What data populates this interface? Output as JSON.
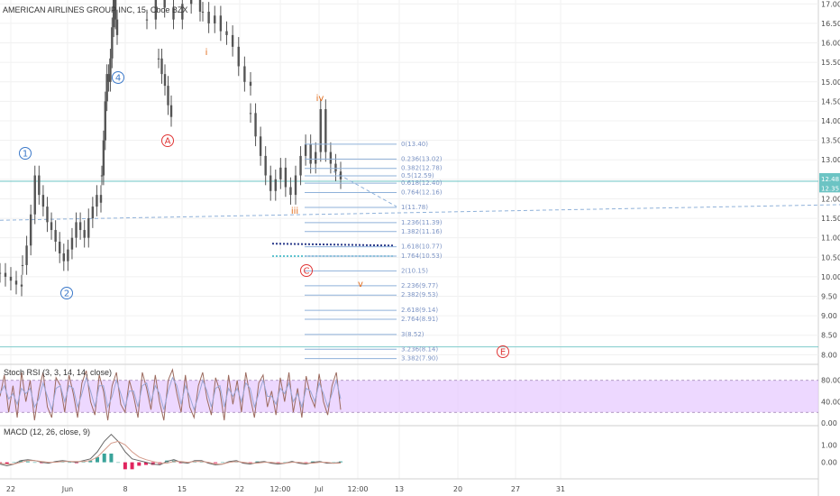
{
  "header": {
    "title": "AMERICAN AIRLINES GROUP INC, 15, Cboe BZX"
  },
  "colors": {
    "candle": "#555555",
    "fib_line": "#8fb1d9",
    "fib_text": "#7b93c4",
    "teal": "#6cc4c4",
    "wave_blue": "#3a78c9",
    "wave_red": "#e03535",
    "wave_orange": "#e06a1a",
    "stoch_band": "#e6c7ff",
    "stoch_k": "#9b6a5e",
    "stoch_d": "#9aa7d6",
    "macd_line": "#666666",
    "macd_signal": "#d49a8a",
    "macd_hist_pos": "#3aa39a",
    "macd_hist_neg": "#e0245e",
    "dark_dotted": "#2a3a8a",
    "cyan_dotted": "#2bb0c0"
  },
  "chart_data": [
    {
      "type": "candlestick",
      "title": "AMERICAN AIRLINES GROUP INC, 15, Cboe BZX",
      "ylim": [
        7.8,
        17.1
      ],
      "y_ticks": [
        8.0,
        8.5,
        9.0,
        9.5,
        10.0,
        10.5,
        11.0,
        11.5,
        12.0,
        12.5,
        13.0,
        13.5,
        14.0,
        14.5,
        15.0,
        15.5,
        16.0,
        16.5,
        17.0
      ],
      "x_ticks": [
        "22",
        "Jun",
        "8",
        "15",
        "22",
        "12:00",
        "Jul",
        "12:00",
        "13",
        "20",
        "27",
        "31"
      ],
      "fibonacci": [
        {
          "label": "0(13.40)",
          "value": 13.4
        },
        {
          "label": "0.236(13.02)",
          "value": 13.02
        },
        {
          "label": "0.382(12.78)",
          "value": 12.78
        },
        {
          "label": "0.5(12.59)",
          "value": 12.59
        },
        {
          "label": "0.618(12.40)",
          "value": 12.4
        },
        {
          "label": "0.764(12.16)",
          "value": 12.16
        },
        {
          "label": "1(11.78)",
          "value": 11.78
        },
        {
          "label": "1.236(11.39)",
          "value": 11.39
        },
        {
          "label": "1.382(11.16)",
          "value": 11.16
        },
        {
          "label": "1.618(10.77)",
          "value": 10.77
        },
        {
          "label": "1.764(10.53)",
          "value": 10.53
        },
        {
          "label": "2(10.15)",
          "value": 10.15
        },
        {
          "label": "2.236(9.77)",
          "value": 9.77
        },
        {
          "label": "2.382(9.53)",
          "value": 9.53
        },
        {
          "label": "2.618(9.14)",
          "value": 9.14
        },
        {
          "label": "2.764(8.91)",
          "value": 8.91
        },
        {
          "label": "3(8.52)",
          "value": 8.52
        },
        {
          "label": "3.236(8.14)",
          "value": 8.14
        },
        {
          "label": "3.382(7.90)",
          "value": 7.9
        }
      ],
      "price_tags": [
        "12.48",
        "12.35"
      ],
      "wave_labels": [
        {
          "text": "1",
          "style": "circle-blue"
        },
        {
          "text": "2",
          "style": "circle-blue"
        },
        {
          "text": "4",
          "style": "circle-blue"
        },
        {
          "text": "A",
          "style": "circle-red"
        },
        {
          "text": "C",
          "style": "circle-red"
        },
        {
          "text": "E",
          "style": "circle-red"
        },
        {
          "text": "i",
          "style": "orange"
        },
        {
          "text": "iii",
          "style": "orange"
        },
        {
          "text": "iv",
          "style": "orange"
        },
        {
          "text": "v",
          "style": "orange"
        }
      ],
      "series": [
        {
          "segment": "pre",
          "values": [
            10.1,
            10.0,
            9.9,
            9.8,
            9.75
          ]
        },
        {
          "segment": "wave1",
          "values": [
            10.3,
            10.8,
            11.6,
            12.6,
            12.1,
            11.8,
            11.4,
            11.2,
            10.9,
            10.6,
            10.4,
            10.7,
            11.0,
            11.4,
            11.2,
            11.0,
            11.5,
            11.8,
            12.1,
            11.9
          ]
        },
        {
          "segment": "rally",
          "values": [
            12.6,
            13.5,
            14.5,
            15.2,
            15.0,
            15.6,
            16.4,
            17.2,
            16.6,
            16.2
          ]
        },
        {
          "segment": "wave4",
          "values": [
            15.6,
            15.2,
            14.9,
            14.4,
            14.1
          ]
        },
        {
          "segment": "top",
          "values": [
            16.6,
            17.3,
            16.9,
            16.6,
            17.0,
            17.2,
            16.8
          ]
        },
        {
          "segment": "wave_i",
          "values": [
            16.8,
            16.5,
            16.7,
            16.3,
            16.2,
            15.9,
            15.4,
            15.0,
            14.9
          ]
        },
        {
          "segment": "decline",
          "values": [
            14.2,
            13.6,
            13.1,
            12.6,
            12.2,
            12.5,
            12.8,
            12.3,
            12.1,
            12.6,
            13.1,
            13.4,
            12.9,
            13.2,
            14.3,
            13.2,
            12.9,
            12.7,
            12.5
          ]
        }
      ]
    },
    {
      "type": "line",
      "title": "Stoch RSI (3, 3, 14, 14, close)",
      "ylim": [
        -5,
        110
      ],
      "y_ticks": [
        0.0,
        40.0,
        80.0
      ],
      "y_tick_labels": [
        "0.00",
        "40.00",
        "80.00"
      ],
      "band": [
        20,
        80
      ],
      "series": [
        {
          "values": [
            50,
            90,
            20,
            70,
            10,
            95,
            40,
            80,
            5,
            60,
            95,
            30,
            10,
            85,
            70,
            20,
            90,
            55,
            10,
            75,
            98,
            40,
            15,
            90,
            60,
            5,
            70,
            95,
            35,
            20,
            80,
            50,
            10,
            95,
            65,
            25,
            90,
            40,
            5,
            80,
            100,
            55,
            20,
            90,
            30,
            10,
            70,
            95,
            45,
            15,
            85,
            60,
            5,
            90,
            35,
            80,
            20,
            95,
            50,
            10,
            75,
            90,
            30,
            60,
            15,
            85,
            40,
            95,
            20,
            65,
            10,
            88,
            50,
            30,
            92,
            40,
            15,
            70,
            95,
            25
          ]
        },
        {
          "values": [
            55,
            70,
            45,
            55,
            35,
            65,
            55,
            65,
            30,
            45,
            75,
            50,
            25,
            65,
            70,
            40,
            70,
            65,
            30,
            55,
            85,
            60,
            30,
            70,
            70,
            30,
            50,
            80,
            55,
            30,
            60,
            60,
            30,
            70,
            75,
            40,
            70,
            55,
            25,
            60,
            85,
            70,
            35,
            70,
            50,
            25,
            50,
            80,
            60,
            30,
            65,
            70,
            30,
            65,
            50,
            65,
            40,
            75,
            65,
            30,
            55,
            80,
            50,
            50,
            35,
            65,
            55,
            75,
            40,
            55,
            30,
            65,
            60,
            40,
            75,
            55,
            30,
            55,
            80,
            45
          ]
        }
      ]
    },
    {
      "type": "line",
      "title": "MACD (12, 26, close, 9)",
      "ylim": [
        -0.9,
        2.0
      ],
      "y_ticks": [
        0.0,
        1.0
      ],
      "y_tick_labels": [
        "0.00",
        "1.00"
      ],
      "series": [
        {
          "name": "macd",
          "values": [
            -0.1,
            -0.2,
            -0.1,
            0.1,
            0.15,
            0.1,
            0.0,
            -0.05,
            0.05,
            0.1,
            0.05,
            0.0,
            0.1,
            0.2,
            0.6,
            1.2,
            1.6,
            1.2,
            0.6,
            0.2,
            0.1,
            0.0,
            -0.1,
            -0.15,
            0.05,
            0.15,
            0.0,
            -0.05,
            0.1,
            0.1,
            -0.05,
            -0.15,
            -0.1,
            0.05,
            0.1,
            -0.05,
            -0.1,
            0.0,
            0.05,
            -0.05,
            -0.1,
            -0.05,
            0.05,
            -0.05,
            -0.1,
            0.0,
            0.05,
            -0.05,
            -0.05,
            0.0
          ]
        },
        {
          "name": "signal",
          "values": [
            -0.05,
            -0.1,
            -0.1,
            0.0,
            0.1,
            0.1,
            0.05,
            0.0,
            0.0,
            0.05,
            0.05,
            0.05,
            0.05,
            0.1,
            0.3,
            0.7,
            1.1,
            1.2,
            1.0,
            0.6,
            0.3,
            0.15,
            0.05,
            -0.05,
            -0.05,
            0.05,
            0.05,
            0.0,
            0.05,
            0.05,
            0.0,
            -0.1,
            -0.1,
            0.0,
            0.05,
            0.0,
            -0.05,
            -0.05,
            0.0,
            0.0,
            -0.05,
            -0.05,
            0.0,
            0.0,
            -0.05,
            -0.05,
            0.0,
            0.0,
            -0.05,
            -0.05
          ]
        }
      ]
    }
  ]
}
